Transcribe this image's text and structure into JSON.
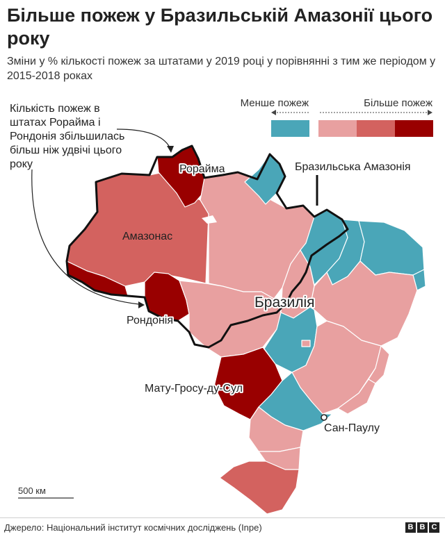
{
  "title": "Більше пожеж у Бразильській Амазонії цього року",
  "subtitle": "Зміни у % кількості пожеж за штатами у 2019 році у порівнянні з тим же періодом у 2015-2018 роках",
  "legend": {
    "less_label": "Менше пожеж",
    "more_label": "Більше пожеж",
    "colors": {
      "decrease": "#4aa6b8",
      "increase_low": "#e8a0a0",
      "increase_mid": "#d3625f",
      "increase_high": "#990000"
    }
  },
  "annotation": "Кількість пожеж в штатах Рорайма і Рондонія збільшилась більш ніж удвічі цього року",
  "labels": {
    "roraima": "Рорайма",
    "amazonas": "Амазонас",
    "rondonia": "Рондонія",
    "mato_grosso_do_sul": "Мату-Гросу-ду-Сул",
    "sao_paulo": "Сан-Паулу",
    "brazil": "Бразилія",
    "amazonia": "Бразильська Амазонія"
  },
  "scale_label": "500 км",
  "source": "Джерело: Національний інститут космічних досліджень (Inpe)",
  "logo": [
    "B",
    "B",
    "C"
  ]
}
